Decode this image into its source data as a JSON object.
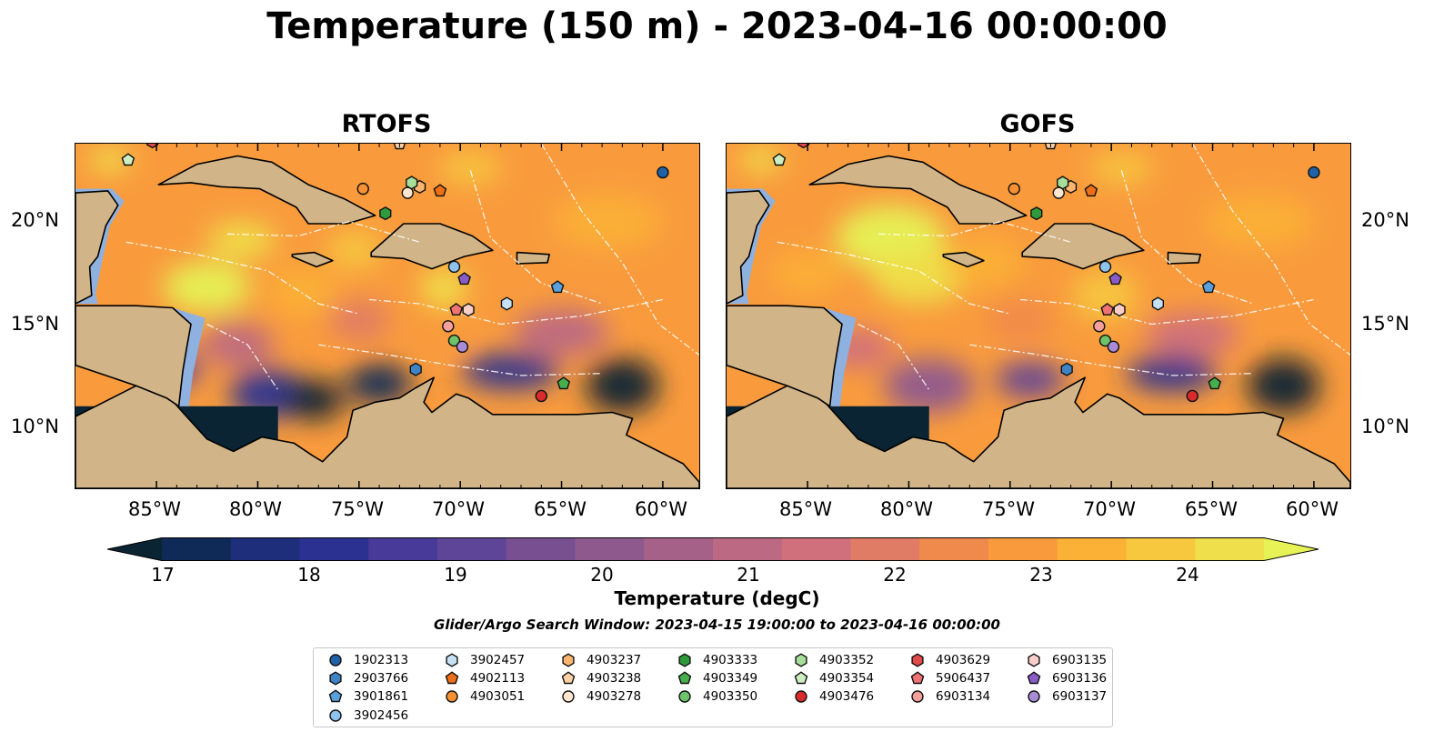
{
  "title": "Temperature (150 m) - 2023-04-16 00:00:00",
  "panels": [
    {
      "title": "RTOFS"
    },
    {
      "title": "GOFS"
    }
  ],
  "axes": {
    "lon_labels": [
      "85°W",
      "80°W",
      "75°W",
      "70°W",
      "65°W",
      "60°W"
    ],
    "lat_labels": [
      "20°N",
      "15°N",
      "10°N"
    ]
  },
  "colorbar": {
    "ticks": [
      "17",
      "18",
      "19",
      "20",
      "21",
      "22",
      "23",
      "24"
    ],
    "label": "Temperature (degC)",
    "colors": [
      "#0a2433",
      "#0f2a56",
      "#1e2e7a",
      "#2b3190",
      "#473a98",
      "#5f4597",
      "#785092",
      "#8e5a8e",
      "#a56188",
      "#bc6983",
      "#d0707c",
      "#e07b65",
      "#f0894c",
      "#f99b3d",
      "#fbb036",
      "#f7c73e",
      "#efdf4a",
      "#e6f255"
    ]
  },
  "search_window": "Glider/Argo Search Window: 2023-04-15 19:00:00 to 2023-04-16 00:00:00",
  "legend": [
    {
      "label": "1902313",
      "marker": "circle",
      "color": "#1f62a8"
    },
    {
      "label": "2903766",
      "marker": "hexagon",
      "color": "#3e84c4"
    },
    {
      "label": "3901861",
      "marker": "pentagon",
      "color": "#5aa0db"
    },
    {
      "label": "3902456",
      "marker": "circle",
      "color": "#8ec3ee"
    },
    {
      "label": "3902457",
      "marker": "hexagon",
      "color": "#c6e1f6"
    },
    {
      "label": "4902113",
      "marker": "pentagon",
      "color": "#ee6f17"
    },
    {
      "label": "4903051",
      "marker": "circle",
      "color": "#f79032"
    },
    {
      "label": "4903237",
      "marker": "hexagon",
      "color": "#fbb56e"
    },
    {
      "label": "4903238",
      "marker": "pentagon",
      "color": "#fdd1a3"
    },
    {
      "label": "4903278",
      "marker": "circle",
      "color": "#fde6cf"
    },
    {
      "label": "4903333",
      "marker": "hexagon",
      "color": "#2e9a3c"
    },
    {
      "label": "4903349",
      "marker": "pentagon",
      "color": "#46ae4a"
    },
    {
      "label": "4903350",
      "marker": "circle",
      "color": "#6cc36a"
    },
    {
      "label": "4903352",
      "marker": "hexagon",
      "color": "#a7de9a"
    },
    {
      "label": "4903354",
      "marker": "pentagon",
      "color": "#cdeec0"
    },
    {
      "label": "4903476",
      "marker": "circle",
      "color": "#d92b2b"
    },
    {
      "label": "4903629",
      "marker": "hexagon",
      "color": "#e34a4a"
    },
    {
      "label": "5906437",
      "marker": "pentagon",
      "color": "#f07272"
    },
    {
      "label": "6903134",
      "marker": "circle",
      "color": "#f5a09a"
    },
    {
      "label": "6903135",
      "marker": "hexagon",
      "color": "#f9cdc8"
    },
    {
      "label": "6903136",
      "marker": "pentagon",
      "color": "#8a5cc6"
    },
    {
      "label": "6903137",
      "marker": "circle",
      "color": "#a98bd6"
    }
  ],
  "floats": [
    {
      "id": "1902313",
      "lon": -60.0,
      "lat": 22.4
    },
    {
      "id": "2903766",
      "lon": -72.2,
      "lat": 12.8
    },
    {
      "id": "3901861",
      "lon": -65.2,
      "lat": 16.8
    },
    {
      "id": "3902456",
      "lon": -70.3,
      "lat": 17.8
    },
    {
      "id": "3902457",
      "lon": -67.7,
      "lat": 16.0
    },
    {
      "id": "4902113",
      "lon": -71.0,
      "lat": 21.5
    },
    {
      "id": "4903051",
      "lon": -74.8,
      "lat": 21.6
    },
    {
      "id": "4903237",
      "lon": -72.0,
      "lat": 21.7
    },
    {
      "id": "4903238",
      "lon": -73.0,
      "lat": 23.8
    },
    {
      "id": "4903278",
      "lon": -72.6,
      "lat": 21.4
    },
    {
      "id": "4903333",
      "lon": -73.7,
      "lat": 20.4
    },
    {
      "id": "4903349",
      "lon": -64.9,
      "lat": 12.1
    },
    {
      "id": "4903350",
      "lon": -70.3,
      "lat": 14.2
    },
    {
      "id": "4903352",
      "lon": -72.4,
      "lat": 21.9
    },
    {
      "id": "4903354",
      "lon": -86.4,
      "lat": 23.0
    },
    {
      "id": "4903476",
      "lon": -66.0,
      "lat": 11.5
    },
    {
      "id": "4903629",
      "lon": -85.2,
      "lat": 23.9
    },
    {
      "id": "5906437",
      "lon": -70.2,
      "lat": 15.7
    },
    {
      "id": "6903134",
      "lon": -70.6,
      "lat": 14.9
    },
    {
      "id": "6903135",
      "lon": -69.6,
      "lat": 15.7
    },
    {
      "id": "6903136",
      "lon": -69.8,
      "lat": 17.2
    },
    {
      "id": "6903137",
      "lon": -69.9,
      "lat": 13.9
    }
  ]
}
